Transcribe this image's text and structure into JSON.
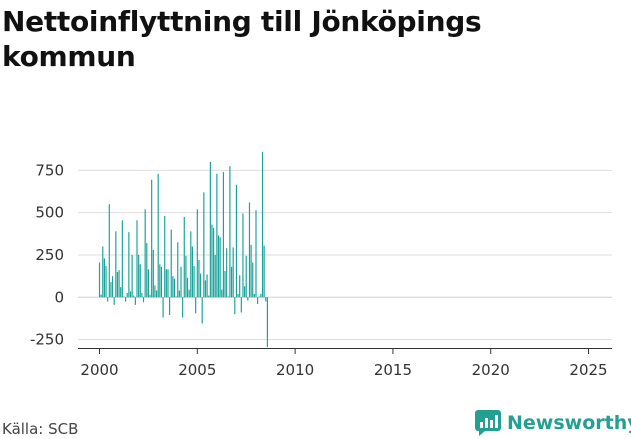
{
  "title": "Nettoinflyttning till Jönköpings kommun",
  "source": "Källa: SCB",
  "brand": {
    "name": "Newsworthy",
    "icon": "newsworthy-logo-icon",
    "color": "#23a092"
  },
  "chart_data": {
    "type": "bar",
    "title": "Nettoinflyttning till Jönköpings kommun",
    "xlabel": "",
    "ylabel": "",
    "bar_color": "#1aa299",
    "x_ticks": [
      "2000",
      "2005",
      "2010",
      "2015",
      "2020",
      "2025"
    ],
    "y_ticks": [
      "-250",
      "0",
      "250",
      "500",
      "750"
    ],
    "ylim": [
      -300,
      900
    ],
    "xlim": [
      1998.9,
      2026.2
    ],
    "grid": true,
    "start": "2000-01",
    "frequency": "monthly",
    "values": [
      205,
      15,
      300,
      230,
      185,
      -25,
      550,
      90,
      125,
      -45,
      390,
      150,
      160,
      60,
      455,
      5,
      -25,
      25,
      385,
      35,
      250,
      10,
      -45,
      455,
      250,
      195,
      25,
      -30,
      520,
      320,
      165,
      15,
      695,
      280,
      70,
      40,
      730,
      195,
      180,
      -120,
      480,
      165,
      165,
      -105,
      400,
      125,
      110,
      5,
      325,
      40,
      180,
      -120,
      475,
      245,
      115,
      45,
      390,
      300,
      185,
      -95,
      520,
      220,
      140,
      -155,
      620,
      100,
      135,
      10,
      800,
      430,
      410,
      250,
      730,
      365,
      355,
      45,
      740,
      155,
      290,
      5,
      775,
      180,
      295,
      -100,
      665,
      20,
      130,
      -90,
      495,
      65,
      245,
      -20,
      560,
      310,
      205,
      20,
      515,
      -40,
      5,
      20,
      860,
      305,
      -25,
      -295
    ]
  }
}
